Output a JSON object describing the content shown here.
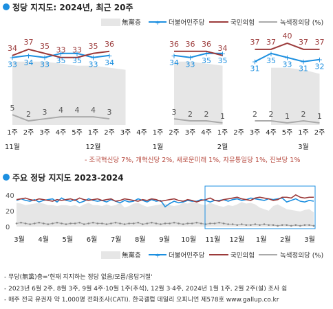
{
  "colors": {
    "nonpartisan": "#e6e6e6",
    "democratic": "#1c8fe0",
    "ppp": "#9b3a3a",
    "green_justice": "#aaaaaa",
    "title_dot": "#1c8fe0",
    "note_red": "#b5453a"
  },
  "chart_data": [
    {
      "type": "line",
      "title": "정당 지지도: 2024년, 최근 20주",
      "categories": [
        "1주",
        "2주",
        "3주",
        "4주",
        "5주",
        "1주",
        "2주",
        "3주",
        "4주",
        "1주",
        "2주",
        "3주",
        "4주",
        "1주",
        "2주",
        "3주",
        "4주",
        "5주",
        "1주",
        "2주"
      ],
      "month_labels": [
        {
          "label": "11월",
          "index": 0
        },
        {
          "label": "12월",
          "index": 5
        },
        {
          "label": "1월",
          "index": 9
        },
        {
          "label": "2월",
          "index": 13
        },
        {
          "label": "3월",
          "index": 18
        }
      ],
      "ylim": [
        0,
        45
      ],
      "grid": false,
      "legend_position": "top-right",
      "series": [
        {
          "name": "無黨층",
          "type": "area",
          "values": [
            31,
            31,
            31,
            30,
            29,
            29,
            28,
            27,
            null,
            null,
            31,
            31,
            30,
            29,
            null,
            null,
            28,
            28,
            27,
            25
          ]
        },
        {
          "name": "더불어민주당",
          "values": [
            33,
            34,
            33,
            35,
            35,
            33,
            34,
            null,
            null,
            null,
            34,
            33,
            35,
            35,
            null,
            31,
            35,
            33,
            31,
            32
          ]
        },
        {
          "name": "국민의힘",
          "values": [
            34,
            37,
            35,
            33,
            33,
            35,
            36,
            null,
            null,
            null,
            36,
            36,
            36,
            34,
            null,
            37,
            37,
            40,
            37,
            37
          ]
        },
        {
          "name": "녹색정의당 (%)",
          "values": [
            5,
            2,
            3,
            4,
            4,
            4,
            3,
            null,
            null,
            null,
            3,
            2,
            2,
            1,
            null,
            2,
            2,
            1,
            2,
            1
          ]
        }
      ],
      "data_labels": {
        "ppp": [
          "34",
          "37",
          "35",
          "33",
          "33",
          "35",
          "36",
          "36",
          "36",
          "36",
          "34",
          "37",
          "37",
          "40",
          "37",
          "37"
        ],
        "democratic": [
          "33",
          "34",
          "33",
          "35",
          "35",
          "33",
          "34",
          "34",
          "33",
          "35",
          "35",
          "31",
          "35",
          "33",
          "31",
          "32"
        ],
        "green": [
          "5",
          "2",
          "3",
          "4",
          "4",
          "4",
          "3",
          "3",
          "2",
          "2",
          "1",
          "2",
          "2",
          "1",
          "2",
          "1"
        ]
      },
      "note": "- 조국혁신당 7%, 개혁신당 2%, 새로운미래 1%, 자유통일당 1%, 진보당 1%"
    },
    {
      "type": "line",
      "title": "주요 정당 지지도 2023-2024",
      "y_ticks": [
        "40",
        "20",
        "0"
      ],
      "ylim": [
        0,
        45
      ],
      "x_labels": [
        "3월",
        "4월",
        "5월",
        "6월",
        "7월",
        "8월",
        "9월",
        "10월",
        "11월",
        "12월",
        "1월",
        "2월",
        "3월"
      ],
      "series": [
        {
          "name": "無黨층",
          "type": "area",
          "values": [
            30,
            29,
            27,
            28,
            29,
            30,
            29,
            27,
            27,
            26,
            27,
            27,
            26,
            27,
            25,
            28,
            30,
            27,
            27,
            26,
            28,
            26,
            27,
            30,
            24,
            26,
            29,
            30,
            27,
            25,
            26,
            27,
            28,
            29,
            27,
            26,
            27,
            30,
            29,
            31,
            30,
            28,
            27,
            30,
            28,
            26,
            25,
            27,
            26,
            28,
            31,
            29,
            30,
            28,
            24,
            22,
            20,
            26,
            28,
            25,
            22,
            21,
            20,
            19,
            21,
            22,
            18
          ]
        },
        {
          "name": "더불어민주당",
          "values": [
            33,
            35,
            33,
            32,
            34,
            31,
            33,
            34,
            35,
            31,
            36,
            33,
            32,
            34,
            30,
            32,
            35,
            33,
            32,
            33,
            31,
            34,
            32,
            30,
            33,
            31,
            32,
            35,
            33,
            31,
            34,
            32,
            33,
            25,
            29,
            32,
            30,
            31,
            33,
            32,
            32,
            34,
            33,
            31,
            33,
            33,
            34,
            32,
            34,
            35,
            33,
            34,
            36,
            35,
            34,
            33,
            35,
            34,
            35,
            36,
            31,
            33,
            35,
            32,
            31,
            33,
            32
          ]
        },
        {
          "name": "국민의힘",
          "values": [
            34,
            35,
            36,
            34,
            33,
            35,
            34,
            33,
            32,
            34,
            33,
            34,
            35,
            33,
            36,
            34,
            33,
            34,
            35,
            33,
            34,
            35,
            32,
            33,
            35,
            34,
            33,
            32,
            34,
            33,
            35,
            34,
            32,
            33,
            34,
            35,
            33,
            32,
            34,
            33,
            31,
            33,
            34,
            36,
            33,
            32,
            34,
            35,
            36,
            37,
            35,
            34,
            33,
            36,
            37,
            36,
            35,
            33,
            34,
            37,
            37,
            36,
            40,
            37,
            36,
            37,
            37
          ]
        },
        {
          "name": "녹색정의당 (%)",
          "values": [
            4,
            5,
            4,
            3,
            4,
            5,
            4,
            3,
            4,
            5,
            4,
            3,
            4,
            4,
            5,
            3,
            4,
            5,
            4,
            4,
            3,
            4,
            5,
            4,
            3,
            4,
            4,
            5,
            3,
            4,
            5,
            4,
            3,
            4,
            4,
            5,
            4,
            3,
            4,
            4,
            5,
            4,
            3,
            4,
            4,
            5,
            4,
            3,
            3,
            2,
            3,
            2,
            2,
            3,
            2,
            3,
            2,
            2,
            1,
            2,
            2,
            1,
            2,
            1,
            2,
            2,
            1
          ]
        }
      ]
    }
  ],
  "legend": {
    "nonpartisan": "無黨층",
    "democratic": "더불어민주당",
    "ppp": "국민의힘",
    "green": "녹색정의당 (%)"
  },
  "footnotes": [
    "- 무당(無黨)층='현재 지지하는 정당 없음/모름/응답거절'",
    "- 2023년 6월 2주, 8월 3주, 9월 4주·10월 1주(추석), 12월 3·4주, 2024년 1월 1주, 2월 2주(설) 조사 쉼",
    "- 매주 전국 유권자 약 1,000명 전화조사(CATI). 한국갤럽 데일리 오피니언 제578호 www.gallup.co.kr"
  ]
}
